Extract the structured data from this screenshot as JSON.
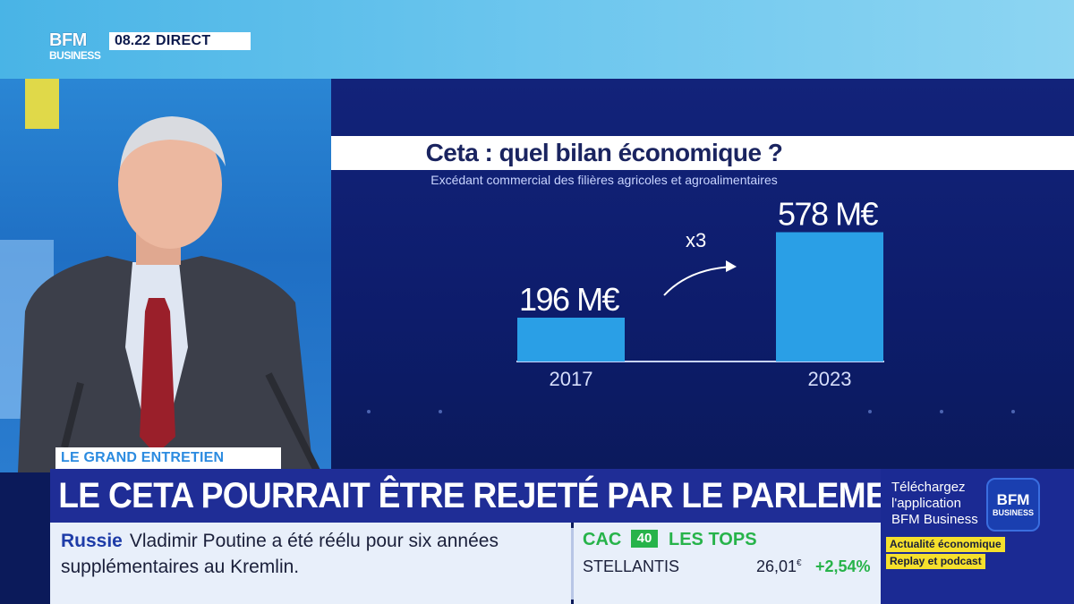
{
  "channel": {
    "logo_line1": "BFM",
    "logo_line2": "BUSINESS",
    "time": "08.22",
    "live": "DIRECT"
  },
  "chart_data": {
    "type": "bar",
    "title": "Ceta : quel bilan économique ?",
    "subtitle": "Excédant commercial des filières agricoles et agroalimentaires",
    "categories": [
      "2017",
      "2023"
    ],
    "values": [
      196,
      578
    ],
    "value_labels": [
      "196 M€",
      "578 M€"
    ],
    "annotation": "x3",
    "ylim": [
      0,
      600
    ],
    "bar_color": "#2a9fe6"
  },
  "program": {
    "segment": "LE GRAND ENTRETIEN",
    "headline": "LE CETA POURRAIT ÊTRE REJETÉ PAR LE PARLEMENT"
  },
  "news_ticker": {
    "topic": "Russie",
    "text_line1": "Vladimir Poutine a été réélu pour six années",
    "text_line2": "supplémentaires au Kremlin."
  },
  "market": {
    "index": "CAC",
    "index_num": "40",
    "heading": "LES TOPS",
    "stock": "STELLANTIS",
    "price": "26,01",
    "currency": "€",
    "change": "+2,54%"
  },
  "promo": {
    "line1": "Téléchargez",
    "line2": "l'application",
    "line3": "BFM Business",
    "logo_line1": "BFM",
    "logo_line2": "BUSINESS",
    "tag1": "Actualité économique",
    "tag2": "Replay et podcast"
  }
}
